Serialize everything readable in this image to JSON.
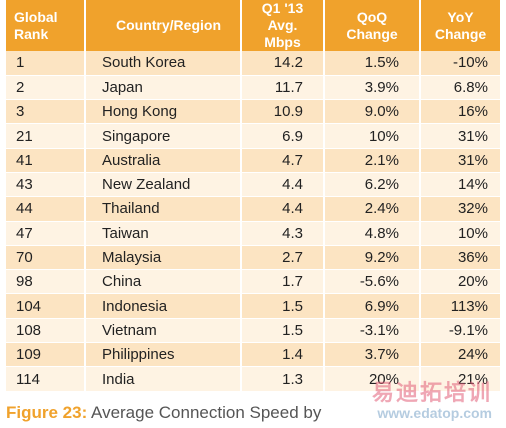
{
  "table": {
    "headers": {
      "rank": [
        "Global",
        "Rank"
      ],
      "country": [
        "Country/Region"
      ],
      "speed": [
        "Q1 '13",
        "Avg. Mbps"
      ],
      "qoq": [
        "QoQ",
        "Change"
      ],
      "yoy": [
        "YoY",
        "Change"
      ]
    },
    "rows": [
      {
        "rank": "1",
        "country": "South Korea",
        "speed": "14.2",
        "qoq": "1.5%",
        "yoy": "-10%"
      },
      {
        "rank": "2",
        "country": "Japan",
        "speed": "11.7",
        "qoq": "3.9%",
        "yoy": "6.8%"
      },
      {
        "rank": "3",
        "country": "Hong Kong",
        "speed": "10.9",
        "qoq": "9.0%",
        "yoy": "16%"
      },
      {
        "rank": "21",
        "country": "Singapore",
        "speed": "6.9",
        "qoq": "10%",
        "yoy": "31%"
      },
      {
        "rank": "41",
        "country": "Australia",
        "speed": "4.7",
        "qoq": "2.1%",
        "yoy": "31%"
      },
      {
        "rank": "43",
        "country": "New Zealand",
        "speed": "4.4",
        "qoq": "6.2%",
        "yoy": "14%"
      },
      {
        "rank": "44",
        "country": "Thailand",
        "speed": "4.4",
        "qoq": "2.4%",
        "yoy": "32%"
      },
      {
        "rank": "47",
        "country": "Taiwan",
        "speed": "4.3",
        "qoq": "4.8%",
        "yoy": "10%"
      },
      {
        "rank": "70",
        "country": "Malaysia",
        "speed": "2.7",
        "qoq": "9.2%",
        "yoy": "36%"
      },
      {
        "rank": "98",
        "country": "China",
        "speed": "1.7",
        "qoq": "-5.6%",
        "yoy": "20%"
      },
      {
        "rank": "104",
        "country": "Indonesia",
        "speed": "1.5",
        "qoq": "6.9%",
        "yoy": "113%"
      },
      {
        "rank": "108",
        "country": "Vietnam",
        "speed": "1.5",
        "qoq": "-3.1%",
        "yoy": "-9.1%"
      },
      {
        "rank": "109",
        "country": "Philippines",
        "speed": "1.4",
        "qoq": "3.7%",
        "yoy": "24%"
      },
      {
        "rank": "114",
        "country": "India",
        "speed": "1.3",
        "qoq": "20%",
        "yoy": "21%"
      }
    ]
  },
  "caption": {
    "label": "Figure 23:",
    "text": " Average Connection Speed by"
  },
  "watermark": {
    "text": "易迪拓培训",
    "url": "www.edatop.com"
  },
  "colors": {
    "header_bg": "#f0a22c",
    "row_dark": "#fce4c2",
    "row_light": "#fef3e3",
    "caption_accent": "#f0a22c"
  }
}
